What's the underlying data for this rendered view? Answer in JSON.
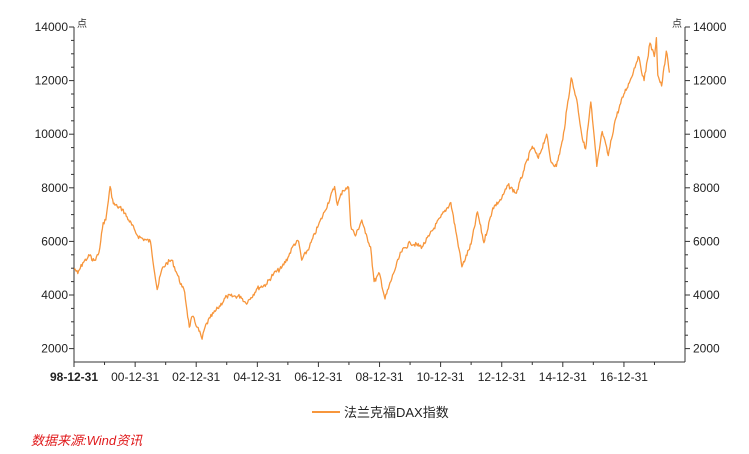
{
  "chart_data": {
    "type": "line",
    "unit_label_left": "点",
    "unit_label_right": "点",
    "ylim": [
      1500,
      14000
    ],
    "yticks": [
      2000,
      4000,
      6000,
      8000,
      10000,
      12000,
      14000
    ],
    "xlim": [
      "1998-12-31",
      "2018-12-31"
    ],
    "xticks": [
      "98-12-31",
      "00-12-31",
      "02-12-31",
      "04-12-31",
      "06-12-31",
      "08-12-31",
      "10-12-31",
      "12-12-31",
      "14-12-31",
      "16-12-31"
    ],
    "line_color": "#F7963C",
    "series": [
      {
        "name": "法兰克福DAX指数",
        "x": [
          "1999-01-04",
          "1999-02-15",
          "1999-04-15",
          "1999-06-15",
          "1999-07-15",
          "1999-08-01",
          "1999-09-15",
          "1999-10-15",
          "1999-11-15",
          "1999-12-15",
          "2000-01-15",
          "2000-03-07",
          "2000-04-15",
          "2000-06-01",
          "2000-08-01",
          "2000-10-15",
          "2000-12-29",
          "2001-02-01",
          "2001-04-01",
          "2001-05-15",
          "2001-07-01",
          "2001-09-21",
          "2001-11-15",
          "2002-01-15",
          "2002-03-15",
          "2002-05-15",
          "2002-07-15",
          "2002-08-15",
          "2002-10-09",
          "2002-11-15",
          "2003-01-15",
          "2003-03-12",
          "2003-04-15",
          "2003-06-15",
          "2003-09-15",
          "2003-12-31",
          "2004-03-15",
          "2004-06-15",
          "2004-08-15",
          "2004-10-15",
          "2004-12-31",
          "2005-04-15",
          "2005-07-15",
          "2005-10-15",
          "2005-12-31",
          "2006-03-15",
          "2006-05-08",
          "2006-06-14",
          "2006-09-15",
          "2006-12-31",
          "2007-03-14",
          "2007-07-13",
          "2007-08-16",
          "2007-10-15",
          "2007-12-28",
          "2008-01-21",
          "2008-03-17",
          "2008-06-02",
          "2008-07-15",
          "2008-09-15",
          "2008-10-27",
          "2008-12-31",
          "2009-03-06",
          "2009-06-15",
          "2009-09-15",
          "2009-12-31",
          "2010-05-25",
          "2010-08-15",
          "2010-12-31",
          "2011-05-02",
          "2011-08-09",
          "2011-09-12",
          "2011-12-31",
          "2012-03-16",
          "2012-06-01",
          "2012-09-15",
          "2012-12-31",
          "2013-03-15",
          "2013-06-24",
          "2013-09-15",
          "2013-12-31",
          "2014-03-14",
          "2014-06-20",
          "2014-08-08",
          "2014-10-16",
          "2014-12-31",
          "2015-04-10",
          "2015-06-15",
          "2015-08-24",
          "2015-09-29",
          "2015-12-01",
          "2016-02-11",
          "2016-04-15",
          "2016-06-27",
          "2016-09-15",
          "2016-12-30",
          "2017-03-15",
          "2017-06-20",
          "2017-08-29",
          "2017-11-07",
          "2017-12-29",
          "2018-01-23",
          "2018-02-09",
          "2018-03-26",
          "2018-05-22",
          "2018-06-28"
        ],
        "values": [
          5000,
          4800,
          5200,
          5400,
          5500,
          5300,
          5300,
          5500,
          6000,
          6700,
          6800,
          8050,
          7400,
          7300,
          7200,
          6800,
          6400,
          6200,
          6100,
          6050,
          6000,
          4200,
          4950,
          5200,
          5300,
          4800,
          4300,
          4100,
          2800,
          3200,
          2800,
          2350,
          2800,
          3150,
          3500,
          3950,
          3950,
          3950,
          3700,
          3900,
          4250,
          4400,
          4800,
          5000,
          5400,
          5900,
          6000,
          5300,
          5800,
          6600,
          7100,
          8050,
          7350,
          7900,
          8000,
          6600,
          6200,
          6800,
          6300,
          5800,
          4500,
          4800,
          3850,
          4800,
          5600,
          5950,
          5800,
          6200,
          6900,
          7450,
          5700,
          5050,
          5900,
          7100,
          5950,
          7250,
          7600,
          8100,
          7800,
          8600,
          9550,
          9100,
          10000,
          9000,
          8800,
          9800,
          12100,
          11300,
          9800,
          9450,
          11200,
          8800,
          10100,
          9200,
          10500,
          11500,
          12000,
          12900,
          12000,
          13400,
          12900,
          13600,
          12200,
          11800,
          13100,
          12300
        ]
      }
    ]
  },
  "legend": {
    "label": "法兰克福DAX指数"
  },
  "source": {
    "text": "数据来源:Wind资讯"
  }
}
